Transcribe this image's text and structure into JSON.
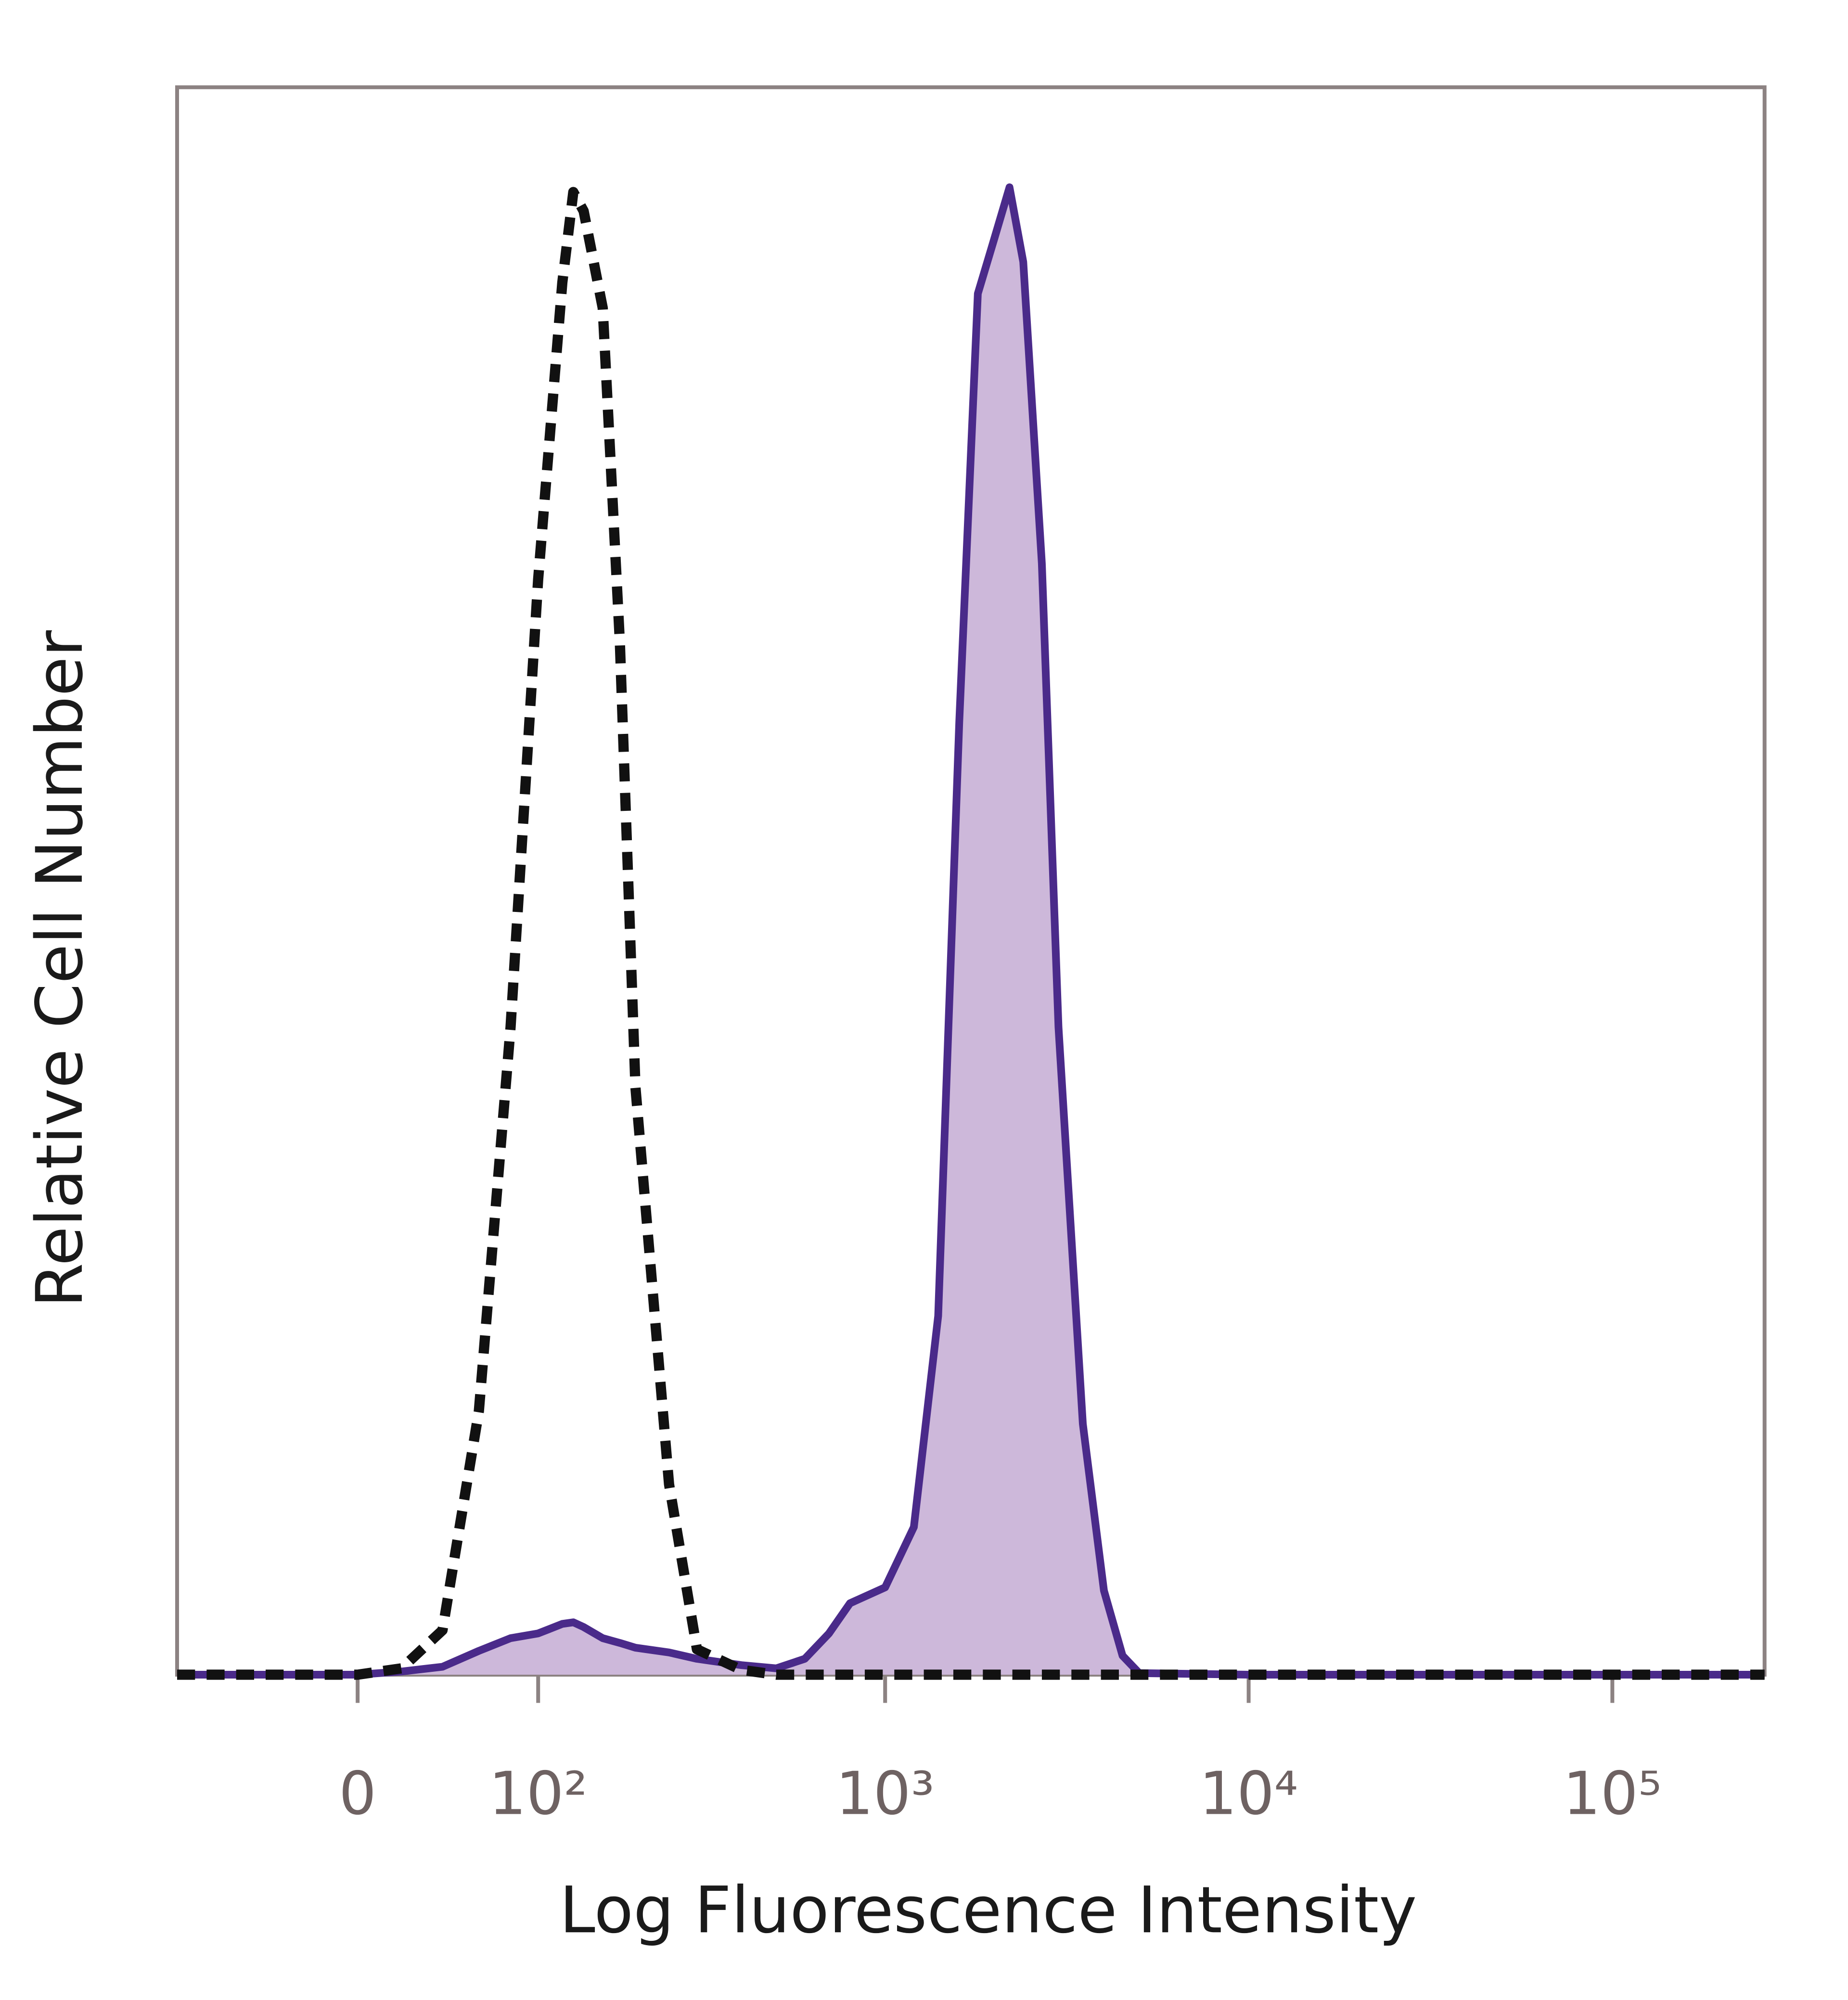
{
  "chart_data": {
    "type": "line",
    "xlabel": "Log Fluorescence Intensity",
    "ylabel": "Relative Cell Number",
    "xscale": "biexponential",
    "xlim": [
      -100,
      262144
    ],
    "xticks": [
      0,
      {
        "value": 100,
        "label": "10²"
      },
      {
        "value": 1000,
        "label": "10³"
      },
      {
        "value": 10000,
        "label": "10⁴"
      },
      {
        "value": 100000,
        "label": "10⁵"
      }
    ],
    "ylim": [
      0,
      100
    ],
    "x": [
      -100,
      -50,
      0,
      20,
      40,
      60,
      80,
      100,
      120,
      130,
      140,
      160,
      180,
      200,
      250,
      300,
      400,
      500,
      600,
      700,
      800,
      1000,
      1200,
      1400,
      1600,
      1800,
      2000,
      2200,
      2400,
      2700,
      3000,
      3500,
      4000,
      4500,
      5000,
      10000,
      100000,
      262144
    ],
    "series": [
      {
        "color": "#4a2a8a",
        "fill": "#cdb8da",
        "style": "solid",
        "values": [
          0,
          0,
          0,
          0.2,
          0.5,
          1.5,
          2.3,
          2.6,
          3.2,
          3.3,
          3.0,
          2.3,
          2.0,
          1.7,
          1.4,
          1.0,
          0.6,
          0.4,
          1.0,
          2.6,
          4.5,
          5.5,
          9.3,
          22.6,
          60,
          87,
          90.5,
          93.7,
          89,
          70,
          40.8,
          15.8,
          5.3,
          1.2,
          0.1,
          0,
          0,
          0
        ]
      },
      {
        "color": "#111111",
        "style": "dashed",
        "values": [
          0,
          0,
          0,
          0.4,
          2.8,
          16.6,
          40.8,
          69,
          87.7,
          93.4,
          92.2,
          86.1,
          65,
          37,
          12,
          1.6,
          0.3,
          0,
          0,
          0,
          0,
          0,
          0,
          0,
          0,
          0,
          0,
          0,
          0,
          0,
          0,
          0,
          0,
          0,
          0,
          0,
          0,
          0
        ]
      }
    ]
  }
}
